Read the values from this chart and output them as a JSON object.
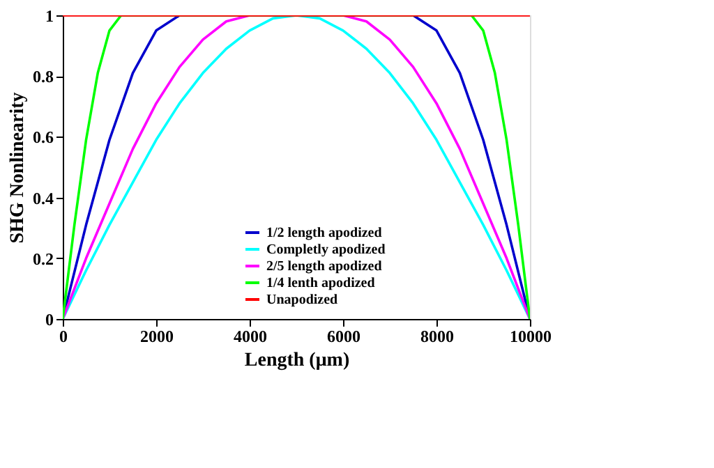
{
  "chart_data": {
    "type": "line",
    "xlabel": "Length (μm)",
    "ylabel": "SHG Nonlinearity",
    "xlim": [
      0,
      10000
    ],
    "ylim": [
      0,
      1
    ],
    "xticks": [
      0,
      2000,
      4000,
      6000,
      8000,
      10000
    ],
    "yticks": [
      0,
      0.2,
      0.4,
      0.6,
      0.8,
      1
    ],
    "grid": false,
    "legend": "bottom",
    "marker": "none",
    "line_style": "solid",
    "series": [
      {
        "name": "1/2 length apodized",
        "color": "#0000cc",
        "x": [
          0,
          500,
          1000,
          1500,
          2000,
          2500,
          7500,
          8000,
          8500,
          9000,
          9500,
          10000
        ],
        "values": [
          0,
          0.31,
          0.59,
          0.81,
          0.95,
          1,
          1,
          0.95,
          0.81,
          0.59,
          0.31,
          0
        ]
      },
      {
        "name": "Completly apodized",
        "color": "#00ffff",
        "x": [
          0,
          500,
          1000,
          1500,
          2000,
          2500,
          3000,
          3500,
          4000,
          4500,
          5000,
          5500,
          6000,
          6500,
          7000,
          7500,
          8000,
          8500,
          9000,
          9500,
          10000
        ],
        "values": [
          0,
          0.16,
          0.31,
          0.45,
          0.59,
          0.71,
          0.81,
          0.89,
          0.95,
          0.99,
          1,
          0.99,
          0.95,
          0.89,
          0.81,
          0.71,
          0.59,
          0.45,
          0.31,
          0.16,
          0
        ]
      },
      {
        "name": "2/5 length apodized",
        "color": "#ff00ff",
        "x": [
          0,
          500,
          1000,
          1500,
          2000,
          2500,
          3000,
          3500,
          4000,
          6000,
          6500,
          7000,
          7500,
          8000,
          8500,
          9000,
          9500,
          10000
        ],
        "values": [
          0,
          0.2,
          0.38,
          0.56,
          0.71,
          0.83,
          0.92,
          0.98,
          1,
          1,
          0.98,
          0.92,
          0.83,
          0.71,
          0.56,
          0.38,
          0.2,
          0
        ]
      },
      {
        "name": "1/4 lenth apodized",
        "color": "#00ff00",
        "x": [
          0,
          250,
          500,
          750,
          1000,
          1250,
          8750,
          9000,
          9250,
          9500,
          9750,
          10000
        ],
        "values": [
          0,
          0.31,
          0.59,
          0.81,
          0.95,
          1,
          1,
          0.95,
          0.81,
          0.59,
          0.31,
          0
        ]
      },
      {
        "name": "Unapodized",
        "color": "#ff0000",
        "x": [
          0,
          10000
        ],
        "values": [
          1,
          1
        ]
      }
    ]
  }
}
